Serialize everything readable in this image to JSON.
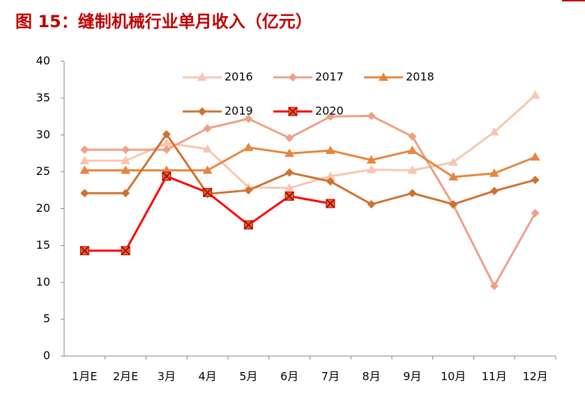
{
  "chart_data": {
    "type": "line",
    "title": "图 15：缝制机械行业单月收入（亿元）",
    "categories": [
      "1月E",
      "2月E",
      "3月",
      "4月",
      "5月",
      "6月",
      "7月",
      "8月",
      "9月",
      "10月",
      "11月",
      "12月"
    ],
    "series": [
      {
        "name": "2016",
        "color": "#f7c6b2",
        "marker": "triangle",
        "values": [
          26.5,
          26.5,
          28.9,
          28.1,
          22.9,
          22.8,
          24.4,
          25.3,
          25.2,
          26.3,
          30.4,
          35.4
        ]
      },
      {
        "name": "2017",
        "color": "#eea083",
        "marker": "diamond",
        "values": [
          28.0,
          28.0,
          28.0,
          30.9,
          32.2,
          29.6,
          32.5,
          32.6,
          29.8,
          20.5,
          9.5,
          19.4
        ]
      },
      {
        "name": "2018",
        "color": "#e8853d",
        "marker": "triangle",
        "values": [
          25.2,
          25.2,
          25.2,
          25.2,
          28.3,
          27.5,
          27.9,
          26.6,
          27.9,
          24.3,
          24.8,
          27.0
        ]
      },
      {
        "name": "2019",
        "color": "#d0712f",
        "marker": "diamond",
        "values": [
          22.1,
          22.1,
          30.1,
          22.0,
          22.5,
          24.9,
          23.7,
          20.6,
          22.1,
          20.6,
          22.4,
          23.9
        ]
      },
      {
        "name": "2020",
        "color": "#ff0000",
        "marker": "xsquare",
        "values": [
          14.3,
          14.3,
          24.4,
          22.2,
          17.8,
          21.7,
          20.7,
          null,
          null,
          null,
          null,
          null
        ]
      }
    ],
    "ylim": [
      0,
      40
    ],
    "yticks": [
      0,
      5,
      10,
      15,
      20,
      25,
      30,
      35,
      40
    ],
    "grid": false
  }
}
